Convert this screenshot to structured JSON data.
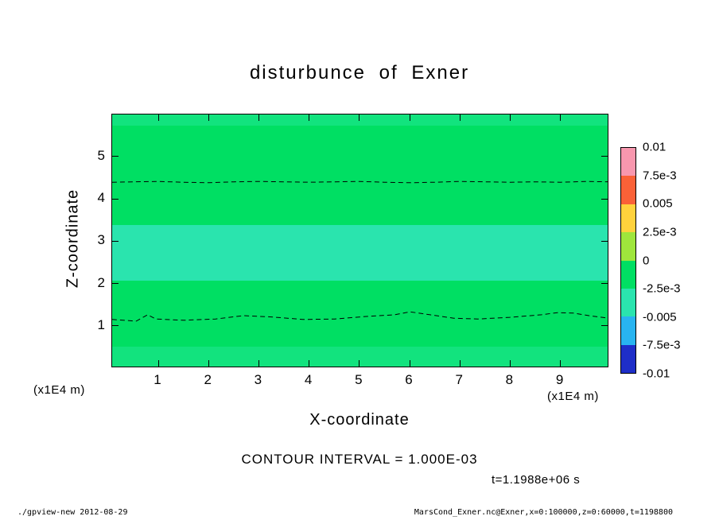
{
  "title": "disturbunce of Exner",
  "axes": {
    "x_label": "X-coordinate",
    "y_label": "Z-coordinate",
    "x_unit": "(x1E4 m)",
    "y_unit": "(x1E4 m)",
    "x_ticks": [
      1,
      2,
      3,
      4,
      5,
      6,
      7,
      8,
      9
    ],
    "y_ticks": [
      1,
      2,
      3,
      4,
      5
    ]
  },
  "annotations": {
    "contour_interval": "CONTOUR INTERVAL = 1.000E-03",
    "time": "t=1.1988e+06 s"
  },
  "footer": {
    "left": "./gpview-new  2012-08-29",
    "right": "MarsCond_Exner.nc@Exner,x=0:100000,z=0:60000,t=1198800"
  },
  "chart_data": {
    "type": "heatmap",
    "subtype": "filled-contour",
    "title": "disturbunce of Exner",
    "xlabel": "X-coordinate (x1E4 m)",
    "ylabel": "Z-coordinate (x1E4 m)",
    "xlim": [
      0,
      10
    ],
    "ylim": [
      0,
      6
    ],
    "contour_interval": 0.001,
    "time_label": "t=1.1988e+06 s",
    "bands": [
      {
        "z_from": 5.72,
        "z_to": 6.0,
        "value_range": "slightly below 0",
        "color": "#12e37e"
      },
      {
        "z_from": 3.38,
        "z_to": 5.72,
        "value_range": "0 to 2.5e-3",
        "color": "#00df63"
      },
      {
        "z_from": 2.07,
        "z_to": 3.38,
        "value_range": "-2.5e-3 to 0",
        "color": "#2ae4ae"
      },
      {
        "z_from": 0.51,
        "z_to": 2.07,
        "value_range": "0 to 2.5e-3",
        "color": "#00df63"
      },
      {
        "z_from": 0.0,
        "z_to": 0.51,
        "value_range": "slightly below 0",
        "color": "#12e37e"
      }
    ],
    "contour_lines": [
      {
        "style": "dashed",
        "points": [
          [
            0.08,
            4.39
          ],
          [
            0.5,
            4.4
          ],
          [
            1,
            4.41
          ],
          [
            1.5,
            4.39
          ],
          [
            2,
            4.38
          ],
          [
            2.5,
            4.4
          ],
          [
            3,
            4.41
          ],
          [
            3.5,
            4.4
          ],
          [
            4,
            4.39
          ],
          [
            4.5,
            4.4
          ],
          [
            5,
            4.41
          ],
          [
            5.5,
            4.39
          ],
          [
            6,
            4.38
          ],
          [
            6.5,
            4.39
          ],
          [
            7,
            4.41
          ],
          [
            7.5,
            4.4
          ],
          [
            8,
            4.39
          ],
          [
            8.5,
            4.4
          ],
          [
            9,
            4.39
          ],
          [
            9.5,
            4.41
          ],
          [
            9.97,
            4.4
          ]
        ]
      },
      {
        "style": "dashed",
        "points": [
          [
            0.08,
            1.15
          ],
          [
            0.56,
            1.11
          ],
          [
            0.79,
            1.26
          ],
          [
            0.95,
            1.16
          ],
          [
            1.5,
            1.13
          ],
          [
            2.14,
            1.16
          ],
          [
            2.69,
            1.24
          ],
          [
            3.25,
            1.21
          ],
          [
            3.88,
            1.15
          ],
          [
            4.51,
            1.16
          ],
          [
            5.14,
            1.22
          ],
          [
            5.7,
            1.26
          ],
          [
            6.01,
            1.33
          ],
          [
            6.41,
            1.26
          ],
          [
            6.88,
            1.18
          ],
          [
            7.36,
            1.16
          ],
          [
            7.99,
            1.2
          ],
          [
            8.62,
            1.26
          ],
          [
            8.94,
            1.31
          ],
          [
            9.26,
            1.3
          ],
          [
            9.57,
            1.24
          ],
          [
            9.97,
            1.18
          ]
        ]
      }
    ],
    "colorbar": {
      "labels": [
        "0.01",
        "7.5e-3",
        "0.005",
        "2.5e-3",
        "0",
        "-2.5e-3",
        "-0.005",
        "-7.5e-3",
        "-0.01"
      ],
      "colors": [
        "#f897ae",
        "#fa6137",
        "#ffd23c",
        "#9fe63c",
        "#00df63",
        "#2ae4ae",
        "#28b4f0",
        "#1e2ec8"
      ]
    }
  }
}
